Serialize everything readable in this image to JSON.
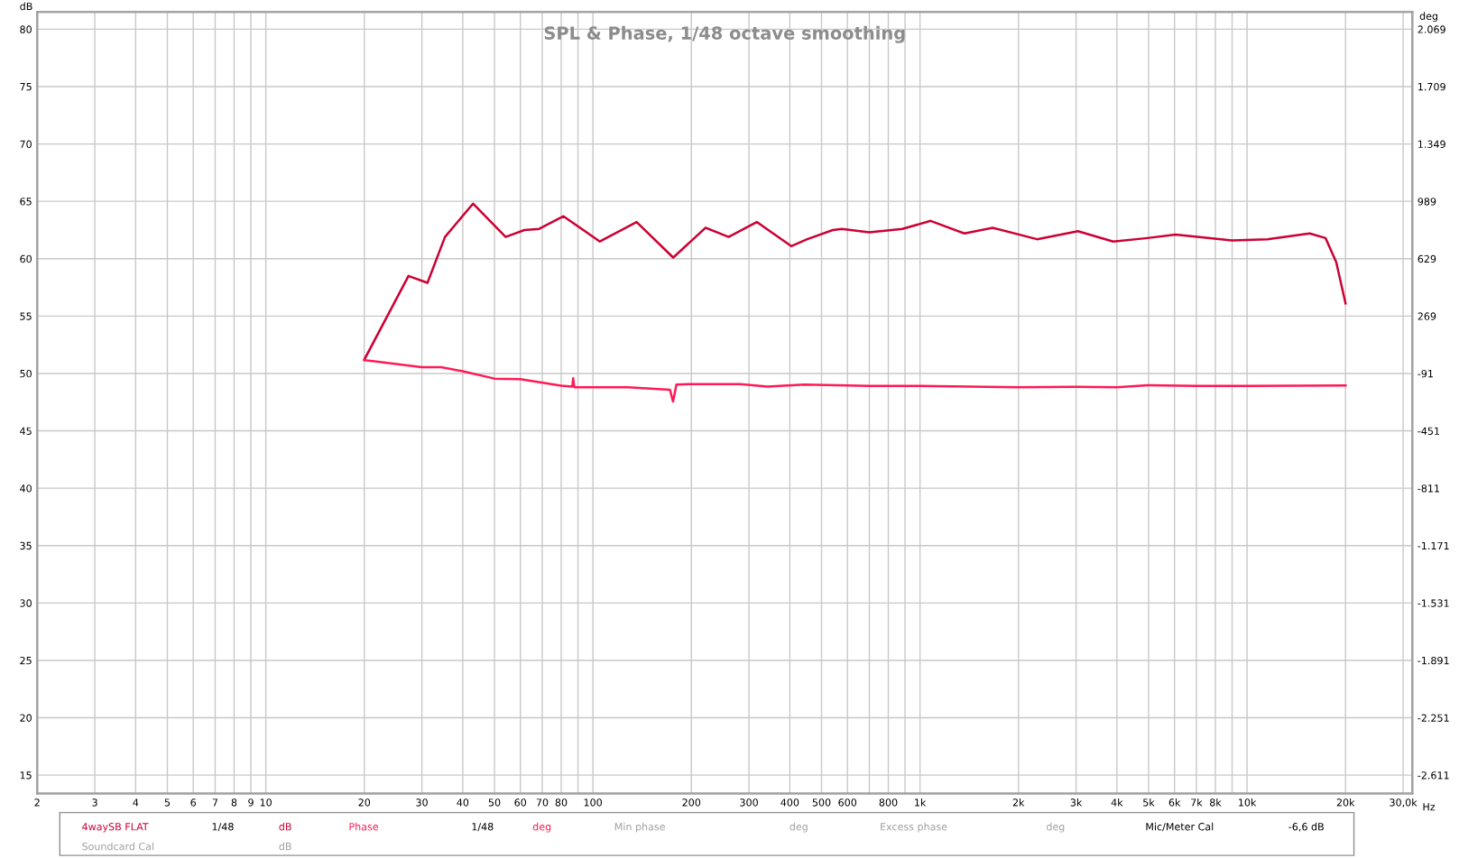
{
  "chart_data": {
    "type": "line",
    "title": "SPL & Phase, 1/48 octave smoothing",
    "xlabel": "Hz",
    "ylabel": "dB",
    "y2label": "deg",
    "log": "x",
    "grid": true,
    "legend": "bottom",
    "marker": "none",
    "line_style": "solid",
    "xlim": [
      2,
      32000
    ],
    "ylim": [
      13.4,
      81.5
    ],
    "y2lim": [
      -2726,
      2177
    ],
    "xticks": [
      2,
      3,
      4,
      5,
      6,
      7,
      8,
      9,
      10,
      20,
      30,
      40,
      50,
      60,
      70,
      80,
      {
        "value": 90,
        "label": null
      },
      100,
      200,
      300,
      400,
      500,
      600,
      {
        "value": 700,
        "label": null
      },
      800,
      {
        "value": 900,
        "label": null
      },
      {
        "value": 1000,
        "label": "1k"
      },
      {
        "value": 2000,
        "label": "2k"
      },
      {
        "value": 3000,
        "label": "3k"
      },
      {
        "value": 4000,
        "label": "4k"
      },
      {
        "value": 5000,
        "label": "5k"
      },
      {
        "value": 6000,
        "label": "6k"
      },
      {
        "value": 7000,
        "label": "7k"
      },
      {
        "value": 8000,
        "label": "8k"
      },
      {
        "value": 9000,
        "label": null
      },
      {
        "value": 10000,
        "label": "10k"
      },
      {
        "value": 20000,
        "label": "20k"
      },
      {
        "value": 30000,
        "label": "30,0k"
      }
    ],
    "yticks": [
      15,
      20,
      25,
      30,
      35,
      40,
      45,
      50,
      55,
      60,
      65,
      70,
      75,
      80
    ],
    "y2ticks": [
      {
        "value": -2611,
        "label": "-2.611"
      },
      {
        "value": -2251,
        "label": "-2.251"
      },
      {
        "value": -1891,
        "label": "-1.891"
      },
      {
        "value": -1531,
        "label": "-1.531"
      },
      {
        "value": -1171,
        "label": "-1.171"
      },
      -811,
      -451,
      -91,
      269,
      629,
      989,
      {
        "value": 1349,
        "label": "1.349"
      },
      {
        "value": 1709,
        "label": "1.709"
      },
      {
        "value": 2069,
        "label": "2.069"
      }
    ],
    "series": [
      {
        "name": "4waySB FLAT",
        "color": "#cc0033",
        "x": [
          20,
          27.3,
          31.2,
          35.3,
          43,
          54.1,
          61.7,
          68.5,
          81.3,
          105,
          136,
          176,
          221,
          260,
          317,
          404,
          452,
          541,
          577,
          700,
          883,
          1078,
          1367,
          1668,
          2279,
          3040,
          3897,
          4953,
          6043,
          8993,
          11528,
          15540,
          17380,
          18730,
          20000
        ],
        "values": [
          51.2,
          58.5,
          57.9,
          61.9,
          64.8,
          61.9,
          62.5,
          62.6,
          63.7,
          61.5,
          63.2,
          60.1,
          62.7,
          61.9,
          63.2,
          61.1,
          61.7,
          62.5,
          62.6,
          62.3,
          62.6,
          63.3,
          62.2,
          62.7,
          61.7,
          62.4,
          61.5,
          61.8,
          62.1,
          61.6,
          61.7,
          62.2,
          61.8,
          59.7,
          56.1
        ]
      },
      {
        "name": "Phase",
        "color": "#ff1a55",
        "axis": "y2",
        "x": [
          20,
          22.1,
          30,
          34.4,
          40,
          50,
          60,
          80,
          86.5,
          87,
          87.7,
          100,
          128,
          172,
          175.8,
          180,
          200,
          282,
          342,
          442,
          560,
          700,
          1000,
          2000,
          3000,
          4000,
          5000,
          7000,
          10000,
          20000
        ],
        "values": [
          -7,
          -17,
          -51,
          -51,
          -77,
          -123,
          -127,
          -167,
          -173,
          -121,
          -177,
          -177,
          -177,
          -193,
          -267,
          -161,
          -157,
          -157,
          -173,
          -161,
          -164,
          -169,
          -169,
          -178,
          -175,
          -178,
          -164,
          -169,
          -169,
          -166
        ]
      }
    ],
    "annotations": [
      "1/48",
      "dB",
      "1/48",
      "deg",
      "Min phase",
      "deg",
      "Excess phase",
      "deg",
      "Mic/Meter Cal",
      "-6,6 dB",
      "Soundcard Cal",
      "dB"
    ]
  }
}
